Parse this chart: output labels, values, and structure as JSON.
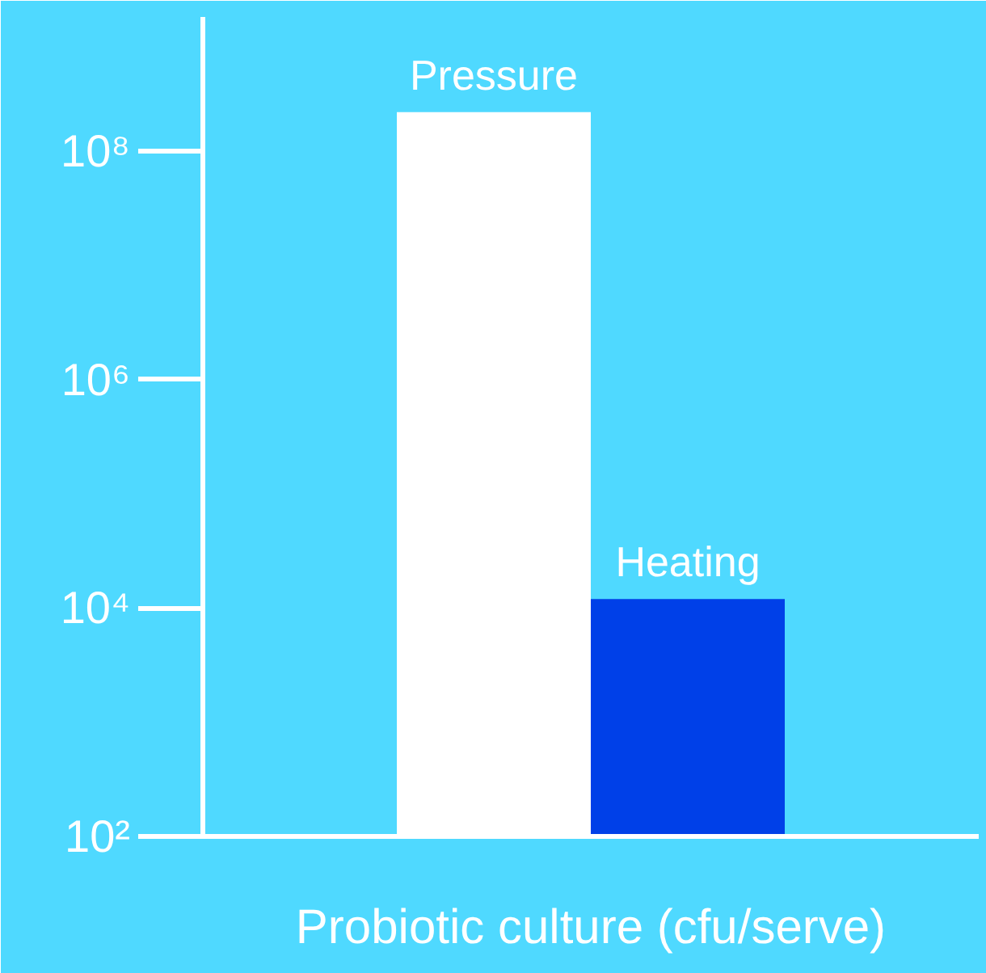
{
  "chart_data": {
    "type": "bar",
    "xlabel": "Probiotic culture (cfu/serve)",
    "categories": [
      "Pressure",
      "Heating"
    ],
    "values": [
      220000000,
      12000
    ],
    "colors": [
      "#ffffff",
      "#0040e8"
    ],
    "log": true,
    "ylim": [
      100,
      1500000000
    ],
    "yticks": [
      {
        "value": 100,
        "label": "10²"
      },
      {
        "value": 10000,
        "label": "10⁴"
      },
      {
        "value": 1000000,
        "label": "10⁶"
      },
      {
        "value": 100000000,
        "label": "10⁸"
      }
    ],
    "grid": false
  }
}
